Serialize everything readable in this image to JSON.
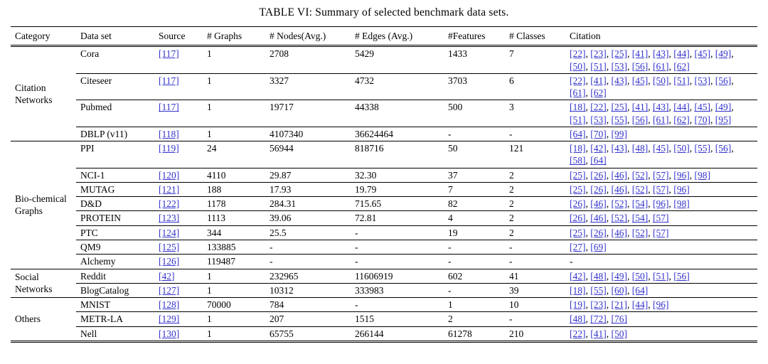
{
  "page": {
    "title": "TABLE VI: Summary of selected benchmark data sets."
  },
  "colors": {
    "link": "#3232cc",
    "text": "#000000",
    "rule": "#000000"
  },
  "table": {
    "columns": [
      "Category",
      "Data set",
      "Source",
      "# Graphs",
      "# Nodes(Avg.)",
      "# Edges (Avg.)",
      "#Features",
      "# Classes",
      "Citation"
    ],
    "groups": [
      {
        "category": "Citation Networks",
        "rows": [
          {
            "dataset": "Cora",
            "source": "[117]",
            "graphs": "1",
            "nodes": "2708",
            "edges": "5429",
            "features": "1433",
            "classes": "7",
            "citations": [
              "[22]",
              "[23]",
              "[25]",
              "[41]",
              "[43]",
              "[44]",
              "[45]",
              "[49]",
              "[50]",
              "[51]",
              "[53]",
              "[56]",
              "[61]",
              "[62]"
            ]
          },
          {
            "dataset": "Citeseer",
            "source": "[117]",
            "graphs": "1",
            "nodes": "3327",
            "edges": "4732",
            "features": "3703",
            "classes": "6",
            "citations": [
              "[22]",
              "[41]",
              "[43]",
              "[45]",
              "[50]",
              "[51]",
              "[53]",
              "[56]",
              "[61]",
              "[62]"
            ]
          },
          {
            "dataset": "Pubmed",
            "source": "[117]",
            "graphs": "1",
            "nodes": "19717",
            "edges": "44338",
            "features": "500",
            "classes": "3",
            "citations": [
              "[18]",
              "[22]",
              "[25]",
              "[41]",
              "[43]",
              "[44]",
              "[45]",
              "[49]",
              "[51]",
              "[53]",
              "[55]",
              "[56]",
              "[61]",
              "[62]",
              "[70]",
              "[95]"
            ]
          },
          {
            "dataset": "DBLP (v11)",
            "source": "[118]",
            "graphs": "1",
            "nodes": "4107340",
            "edges": "36624464",
            "features": "-",
            "classes": "-",
            "citations": [
              "[64]",
              "[70]",
              "[99]"
            ]
          }
        ]
      },
      {
        "category": "Bio-chemical Graphs",
        "rows": [
          {
            "dataset": "PPI",
            "source": "[119]",
            "graphs": "24",
            "nodes": "56944",
            "edges": "818716",
            "features": "50",
            "classes": "121",
            "citations": [
              "[18]",
              "[42]",
              "[43]",
              "[48]",
              "[45]",
              "[50]",
              "[55]",
              "[56]",
              "[58]",
              "[64]"
            ]
          },
          {
            "dataset": "NCI-1",
            "source": "[120]",
            "graphs": "4110",
            "nodes": "29.87",
            "edges": "32.30",
            "features": "37",
            "classes": "2",
            "citations": [
              "[25]",
              "[26]",
              "[46]",
              "[52]",
              "[57]",
              "[96]",
              "[98]"
            ]
          },
          {
            "dataset": "MUTAG",
            "source": "[121]",
            "graphs": "188",
            "nodes": "17.93",
            "edges": "19.79",
            "features": "7",
            "classes": "2",
            "citations": [
              "[25]",
              "[26]",
              "[46]",
              "[52]",
              "[57]",
              "[96]"
            ]
          },
          {
            "dataset": "D&D",
            "source": "[122]",
            "graphs": "1178",
            "nodes": "284.31",
            "edges": "715.65",
            "features": "82",
            "classes": "2",
            "citations": [
              "[26]",
              "[46]",
              "[52]",
              "[54]",
              "[96]",
              "[98]"
            ]
          },
          {
            "dataset": "PROTEIN",
            "source": "[123]",
            "graphs": "1113",
            "nodes": "39.06",
            "edges": "72.81",
            "features": "4",
            "classes": "2",
            "citations": [
              "[26]",
              "[46]",
              "[52]",
              "[54]",
              "[57]"
            ]
          },
          {
            "dataset": "PTC",
            "source": "[124]",
            "graphs": "344",
            "nodes": "25.5",
            "edges": "-",
            "features": "19",
            "classes": "2",
            "citations": [
              "[25]",
              "[26]",
              "[46]",
              "[52]",
              "[57]"
            ]
          },
          {
            "dataset": "QM9",
            "source": "[125]",
            "graphs": "133885",
            "nodes": "-",
            "edges": "-",
            "features": "-",
            "classes": "-",
            "citations": [
              "[27]",
              "[69]"
            ]
          },
          {
            "dataset": "Alchemy",
            "source": "[126]",
            "graphs": "119487",
            "nodes": "-",
            "edges": "-",
            "features": "-",
            "classes": "-",
            "citations": [
              "-"
            ]
          }
        ]
      },
      {
        "category": "Social Networks",
        "rows": [
          {
            "dataset": "Reddit",
            "source": "[42]",
            "graphs": "1",
            "nodes": "232965",
            "edges": "11606919",
            "features": "602",
            "classes": "41",
            "citations": [
              "[42]",
              "[48]",
              "[49]",
              "[50]",
              "[51]",
              "[56]"
            ]
          },
          {
            "dataset": "BlogCatalog",
            "source": "[127]",
            "graphs": "1",
            "nodes": "10312",
            "edges": "333983",
            "features": "-",
            "classes": "39",
            "citations": [
              "[18]",
              "[55]",
              "[60]",
              "[64]"
            ]
          }
        ]
      },
      {
        "category": "Others",
        "rows": [
          {
            "dataset": "MNIST",
            "source": "[128]",
            "graphs": "70000",
            "nodes": "784",
            "edges": "-",
            "features": "1",
            "classes": "10",
            "citations": [
              "[19]",
              "[23]",
              "[21]",
              "[44]",
              "[96]"
            ]
          },
          {
            "dataset": "METR-LA",
            "source": "[129]",
            "graphs": "1",
            "nodes": "207",
            "edges": "1515",
            "features": "2",
            "classes": "-",
            "citations": [
              "[48]",
              "[72]",
              "[76]"
            ]
          },
          {
            "dataset": "Nell",
            "source": "[130]",
            "graphs": "1",
            "nodes": "65755",
            "edges": "266144",
            "features": "61278",
            "classes": "210",
            "citations": [
              "[22]",
              "[41]",
              "[50]"
            ]
          }
        ]
      }
    ]
  }
}
